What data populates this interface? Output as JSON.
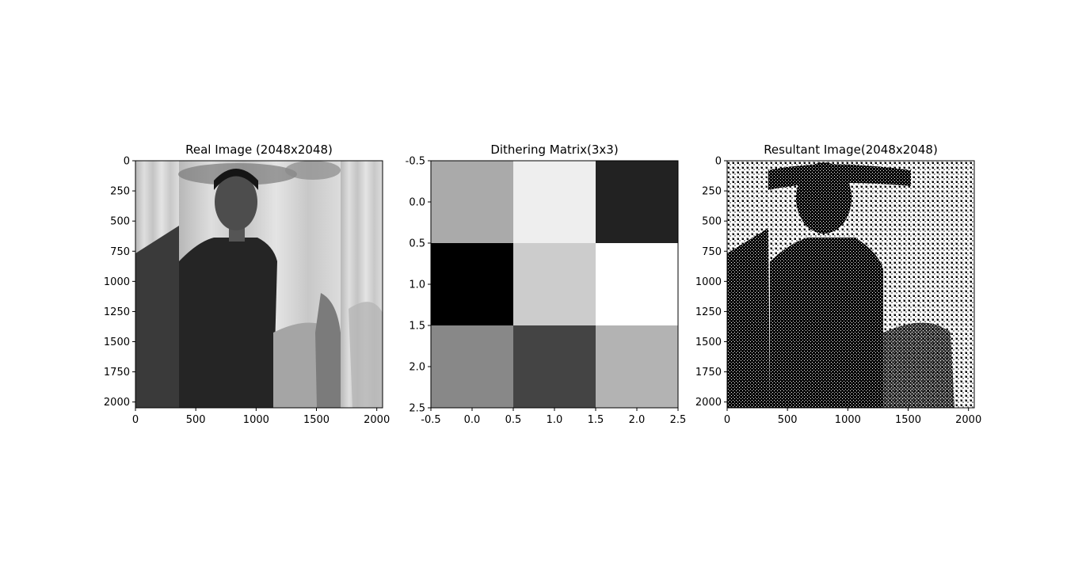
{
  "chart_data": [
    {
      "type": "image",
      "title": "Real Image (2048x2048)",
      "xlim": [
        0,
        2048
      ],
      "ylim": [
        2048,
        0
      ],
      "xticks": [
        0,
        500,
        1000,
        1500,
        2000
      ],
      "yticks": [
        0,
        250,
        500,
        750,
        1000,
        1250,
        1500,
        1750,
        2000
      ],
      "colormap": "gray",
      "content": "grayscale photograph of a person standing in front of a decorated curtain"
    },
    {
      "type": "heatmap",
      "title": "Dithering Matrix(3x3)",
      "xlim": [
        -0.5,
        2.5
      ],
      "ylim": [
        2.5,
        -0.5
      ],
      "xticks": [
        -0.5,
        0.0,
        0.5,
        1.0,
        1.5,
        2.0,
        2.5
      ],
      "yticks": [
        -0.5,
        0.0,
        0.5,
        1.0,
        1.5,
        2.0,
        2.5
      ],
      "colormap": "gray",
      "values": [
        [
          6,
          8,
          2
        ],
        [
          1,
          7,
          8.5
        ],
        [
          5,
          3,
          6.25
        ]
      ],
      "value_range": [
        1,
        8.5
      ]
    },
    {
      "type": "image",
      "title": "Resultant Image(2048x2048)",
      "xlim": [
        0,
        2048
      ],
      "ylim": [
        2048,
        0
      ],
      "xticks": [
        0,
        500,
        1000,
        1500,
        2000
      ],
      "yticks": [
        0,
        250,
        500,
        750,
        1000,
        1250,
        1500,
        1750,
        2000
      ],
      "colormap": "binary",
      "content": "black-and-white ordered-dither halftone of the real image"
    }
  ]
}
